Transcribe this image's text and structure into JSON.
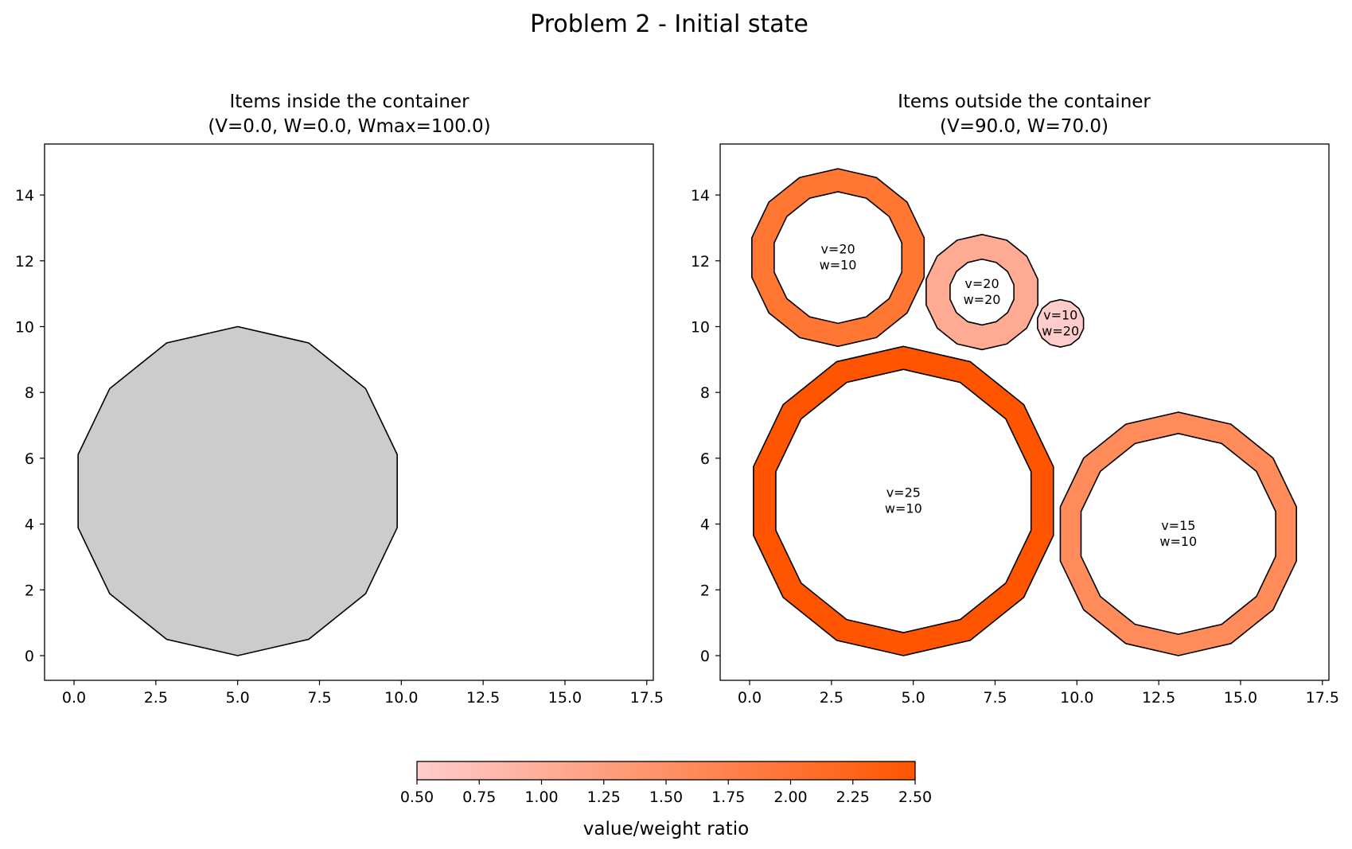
{
  "figure": {
    "suptitle": "Problem 2 - Initial state"
  },
  "chart_data": [
    {
      "type": "polygon-plot",
      "title_line1": "Items inside the container",
      "title_line2": "(V=0.0, W=0.0, Wmax=100.0)",
      "xlim": [
        -0.9,
        17.7
      ],
      "ylim": [
        -0.75,
        15.55
      ],
      "xticks": [
        "0.0",
        "2.5",
        "5.0",
        "7.5",
        "10.0",
        "12.5",
        "15.0",
        "17.5"
      ],
      "yticks": [
        "0",
        "2",
        "4",
        "6",
        "8",
        "10",
        "12",
        "14"
      ],
      "grid": false,
      "container": {
        "shape": "14-gon",
        "center": [
          5.0,
          5.0
        ],
        "radius": 5.0,
        "fill": "#cccccc",
        "edge": "#000000"
      },
      "items": []
    },
    {
      "type": "polygon-plot",
      "title_line1": "Items outside the container",
      "title_line2": "(V=90.0, W=70.0)",
      "xlim": [
        -0.9,
        17.7
      ],
      "ylim": [
        -0.75,
        15.55
      ],
      "xticks": [
        "0.0",
        "2.5",
        "5.0",
        "7.5",
        "10.0",
        "12.5",
        "15.0",
        "17.5"
      ],
      "yticks": [
        "0",
        "2",
        "4",
        "6",
        "8",
        "10",
        "12",
        "14"
      ],
      "grid": false,
      "items": [
        {
          "label_v": "v=20",
          "label_w": "w=10",
          "value": 20,
          "weight": 10,
          "ratio": 2.0,
          "center": [
            2.7,
            12.1
          ],
          "outer_r": 2.7,
          "inner_r": 2.0,
          "color": "#ff7733"
        },
        {
          "label_v": "v=20",
          "label_w": "w=20",
          "value": 20,
          "weight": 20,
          "ratio": 1.0,
          "center": [
            7.1,
            11.05
          ],
          "outer_r": 1.75,
          "inner_r": 1.0,
          "color": "#ffaa93"
        },
        {
          "label_v": "v=10",
          "label_w": "w=20",
          "value": 10,
          "weight": 20,
          "ratio": 0.5,
          "center": [
            9.5,
            10.1
          ],
          "outer_r": 0.72,
          "inner_r": 0.0,
          "color": "#ffcccc"
        },
        {
          "label_v": "v=25",
          "label_w": "w=10",
          "value": 25,
          "weight": 10,
          "ratio": 2.5,
          "center": [
            4.7,
            4.7
          ],
          "outer_r": 4.7,
          "inner_r": 4.0,
          "color": "#ff5500"
        },
        {
          "label_v": "v=15",
          "label_w": "w=10",
          "value": 15,
          "weight": 10,
          "ratio": 1.5,
          "center": [
            13.1,
            3.7
          ],
          "outer_r": 3.7,
          "inner_r": 3.05,
          "color": "#ff8c5a"
        }
      ]
    }
  ],
  "colorbar": {
    "label": "value/weight ratio",
    "min": 0.5,
    "max": 2.5,
    "ticks": [
      "0.50",
      "0.75",
      "1.00",
      "1.25",
      "1.50",
      "1.75",
      "2.00",
      "2.25",
      "2.50"
    ],
    "color_low": "#ffcccc",
    "color_high": "#ff5500"
  }
}
